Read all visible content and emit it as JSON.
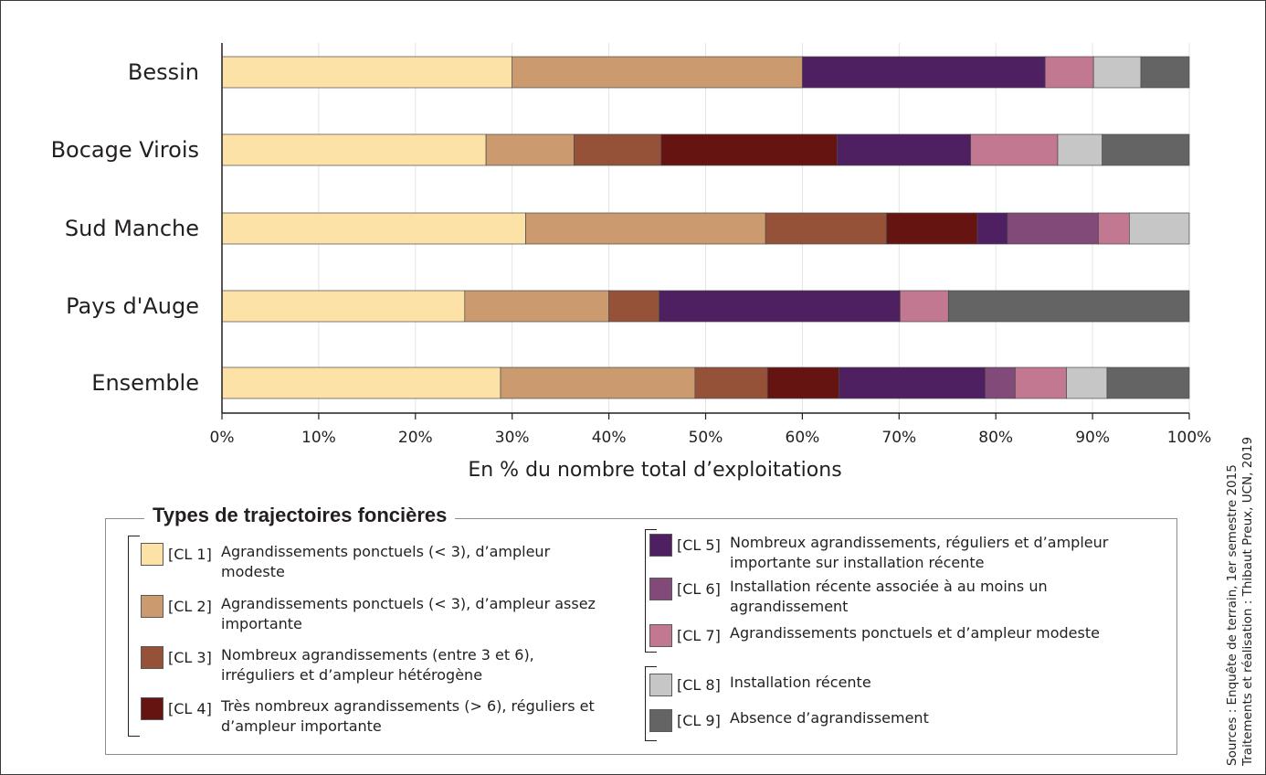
{
  "chart_data": {
    "type": "bar",
    "orientation": "horizontal",
    "stacked": true,
    "categories": [
      "Bessin",
      "Bocage Virois",
      "Sud Manche",
      "Pays d'Auge",
      "Ensemble"
    ],
    "series": [
      {
        "name": "CL 1",
        "color": "#fde2a8",
        "values": [
          30.0,
          27.3,
          31.4,
          25.1,
          28.8
        ]
      },
      {
        "name": "CL 2",
        "color": "#cc9a6f",
        "values": [
          30.0,
          9.1,
          24.8,
          14.9,
          20.1
        ]
      },
      {
        "name": "CL 3",
        "color": "#955238",
        "values": [
          0,
          9.0,
          12.5,
          5.2,
          7.5
        ]
      },
      {
        "name": "CL 4",
        "color": "#651411",
        "values": [
          0,
          18.2,
          9.4,
          0,
          7.4
        ]
      },
      {
        "name": "CL 5",
        "color": "#4e2061",
        "values": [
          25.1,
          13.8,
          3.1,
          24.9,
          15.1
        ]
      },
      {
        "name": "CL 6",
        "color": "#824a79",
        "values": [
          0,
          0,
          9.4,
          0,
          3.1
        ]
      },
      {
        "name": "CL 7",
        "color": "#c27891",
        "values": [
          5.0,
          9.0,
          3.2,
          5.0,
          5.3
        ]
      },
      {
        "name": "CL 8",
        "color": "#c6c6c6",
        "values": [
          4.9,
          4.6,
          6.2,
          0,
          4.2
        ]
      },
      {
        "name": "CL 9",
        "color": "#656464",
        "values": [
          5.0,
          9.0,
          0,
          24.9,
          8.5
        ]
      }
    ],
    "xlabel": "En % du nombre total d’exploitations",
    "xlim": [
      0,
      100
    ],
    "xticks": [
      "0%",
      "10%",
      "20%",
      "30%",
      "40%",
      "50%",
      "60%",
      "70%",
      "80%",
      "90%",
      "100%"
    ],
    "grid": true
  },
  "legend": {
    "title": "Types de trajectoires foncières",
    "items": [
      {
        "code": "[CL 1]",
        "text": "Agrandissements ponctuels (< 3), d’ampleur modeste",
        "color": "#fde2a8"
      },
      {
        "code": "[CL 2]",
        "text": "Agrandissements ponctuels (< 3), d’ampleur assez importante",
        "color": "#cc9a6f"
      },
      {
        "code": "[CL 3]",
        "text": "Nombreux agrandissements (entre 3 et 6), irréguliers et d’ampleur hétérogène",
        "color": "#955238"
      },
      {
        "code": "[CL 4]",
        "text": "Très nombreux agrandissements (> 6), réguliers et d’ampleur importante",
        "color": "#651411"
      },
      {
        "code": "[CL 5]",
        "text": "Nombreux agrandissements, réguliers et d’ampleur importante sur installation récente",
        "color": "#4e2061"
      },
      {
        "code": "[CL 6]",
        "text": "Installation récente associée à au moins un agrandissement",
        "color": "#824a79"
      },
      {
        "code": "[CL 7]",
        "text": "Agrandissements ponctuels et d’ampleur modeste",
        "color": "#c27891"
      },
      {
        "code": "[CL 8]",
        "text": "Installation récente",
        "color": "#c6c6c6"
      },
      {
        "code": "[CL 9]",
        "text": "Absence d’agrandissement",
        "color": "#656464"
      }
    ]
  },
  "source": {
    "line1": "Sources : Enquête de terrain, 1er semestre 2015",
    "line2": "Traitements et réalisation : Thibaut Preux, UCN, 2019"
  }
}
